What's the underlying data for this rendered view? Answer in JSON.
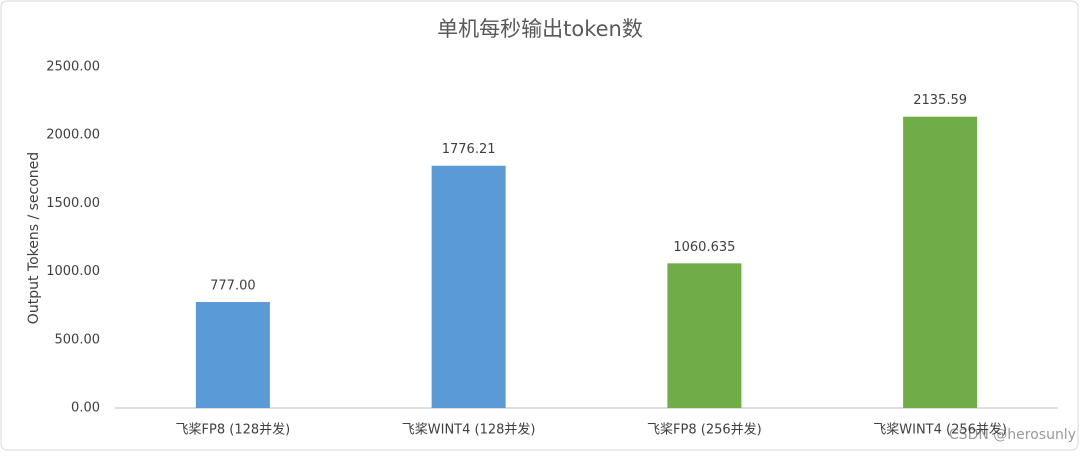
{
  "chart_data": {
    "type": "bar",
    "title": "单机每秒输出token数",
    "y_label": "Output Tokens / seconed",
    "categories": [
      "飞桨FP8 (128并发)",
      "飞桨WINT4 (128并发)",
      "飞桨FP8 (256并发)",
      "飞桨WINT4 (256并发)"
    ],
    "values": [
      777,
      1776.21,
      1060.635,
      2135.59
    ],
    "value_labels": [
      "777.00",
      "1776.21",
      "1060.635",
      "2135.59"
    ],
    "colors": [
      "#5b9bd5",
      "#5b9bd5",
      "#70ad47",
      "#70ad47"
    ],
    "ylim": [
      0,
      2500
    ],
    "yticks": [
      {
        "value": 0,
        "label": "0.00"
      },
      {
        "value": 500,
        "label": "500.00"
      },
      {
        "value": 1000,
        "label": "1000.00"
      },
      {
        "value": 1500,
        "label": "1500.00"
      },
      {
        "value": 2000,
        "label": "2000.00"
      },
      {
        "value": 2500,
        "label": "2500.00"
      }
    ],
    "grid": false,
    "watermark": "CSDN @herosunly"
  }
}
